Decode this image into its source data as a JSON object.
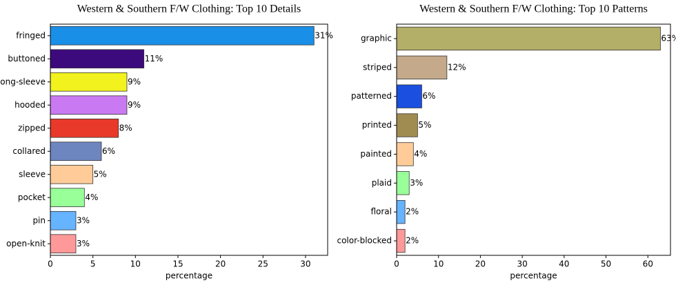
{
  "chart_data": [
    {
      "type": "barh",
      "title": "Western & Southern F/W Clothing:  Top 10 Details",
      "x_label": "percentage",
      "categories": [
        "fringed",
        "buttoned",
        "long-sleeve",
        "hooded",
        "zipped",
        "collared",
        "sleeve",
        "pocket",
        "pin",
        "open-knit"
      ],
      "values": [
        31,
        11,
        9,
        9,
        8,
        6,
        5,
        4,
        3,
        3
      ],
      "value_labels": [
        "31%",
        "11%",
        "9%",
        "9%",
        "8%",
        "6%",
        "5%",
        "4%",
        "3%",
        "3%"
      ],
      "colors": [
        "#1a8fe8",
        "#3d0a7d",
        "#f2f21e",
        "#c97af2",
        "#e8392b",
        "#6e86bf",
        "#ffcc99",
        "#99ff99",
        "#66b3ff",
        "#ff9999"
      ],
      "xlim": [
        0,
        32.6
      ],
      "xticks": [
        0,
        5,
        10,
        15,
        20,
        25,
        30
      ]
    },
    {
      "type": "barh",
      "title": "Western & Southern F/W Clothing:  Top 10 Patterns",
      "x_label": "percentage",
      "categories": [
        "graphic",
        "striped",
        "patterned",
        "printed",
        "painted",
        "plaid",
        "floral",
        "color-blocked"
      ],
      "values": [
        63,
        12,
        6,
        5,
        4,
        3,
        2,
        2
      ],
      "value_labels": [
        "63%",
        "12%",
        "6%",
        "5%",
        "4%",
        "3%",
        "2%",
        "2%"
      ],
      "colors": [
        "#b3ae68",
        "#c4a98a",
        "#1a4fe0",
        "#a08c50",
        "#ffcc99",
        "#99ff99",
        "#66b3ff",
        "#ff9999"
      ],
      "xlim": [
        0,
        65.4
      ],
      "xticks": [
        0,
        10,
        20,
        30,
        40,
        50,
        60
      ]
    }
  ]
}
